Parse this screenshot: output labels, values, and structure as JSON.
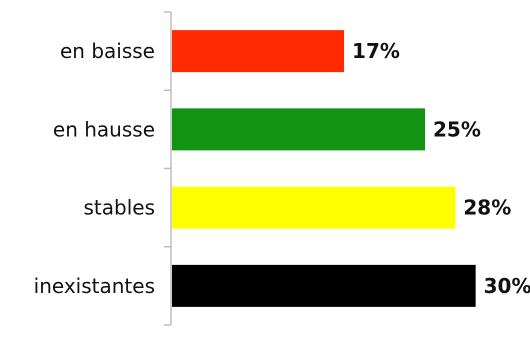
{
  "chart_data": {
    "type": "bar",
    "orientation": "horizontal",
    "categories": [
      "en baisse",
      "en hausse",
      "stables",
      "inexistantes"
    ],
    "values": [
      17,
      25,
      28,
      30
    ],
    "value_labels": [
      "17%",
      "25%",
      "28%",
      "30%"
    ],
    "colors": [
      "#ff2a00",
      "#129312",
      "#ffff00",
      "#000000"
    ],
    "title": "",
    "xlabel": "",
    "ylabel": "",
    "xlim": [
      0,
      33
    ],
    "grid": false,
    "legend": "none"
  }
}
